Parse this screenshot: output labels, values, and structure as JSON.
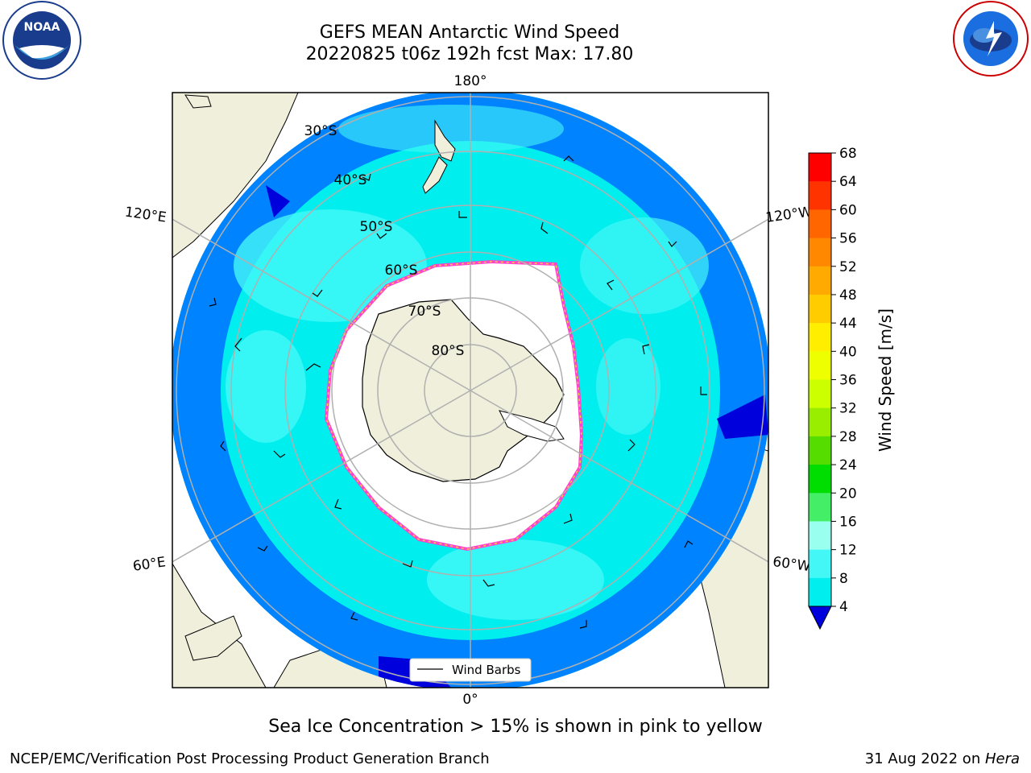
{
  "title_line1": "GEFS MEAN Antarctic Wind Speed",
  "title_line2": "20220825 t06z 192h fcst   Max: 17.80",
  "lon_labels": {
    "top": "180°",
    "left_upper": "120°E",
    "right_upper": "120°W",
    "left_lower": "60°E",
    "right_lower": "60°W",
    "bottom": "0°"
  },
  "lat_labels": [
    "30°S",
    "40°S",
    "50°S",
    "60°S",
    "70°S",
    "80°S"
  ],
  "legend_label": "Wind Barbs",
  "colorbar": {
    "label": "Wind Speed [m/s]",
    "ticks": [
      "68",
      "64",
      "60",
      "56",
      "52",
      "48",
      "44",
      "40",
      "36",
      "32",
      "28",
      "24",
      "20",
      "16",
      "12",
      "8",
      "4"
    ],
    "colors": [
      "#ff0000",
      "#ff3300",
      "#ff6600",
      "#ff8800",
      "#ffaa00",
      "#ffcc00",
      "#ffee00",
      "#eeff00",
      "#ccff00",
      "#99ee00",
      "#55dd00",
      "#00dd00",
      "#44ee66",
      "#99ffee",
      "#44f7f7",
      "#00eeee",
      "#0077ff"
    ],
    "under_color": "#0000dd"
  },
  "caption": "Sea Ice Concentration > 15% is shown in pink to yellow",
  "footer_left": "NCEP/EMC/Verification Post Processing Product Generation Branch",
  "footer_right_prefix": "31 Aug 2022 on ",
  "footer_right_host": "Hera",
  "logos": {
    "left": "NOAA",
    "right": "NATIONAL WEATHER SERVICE"
  }
}
